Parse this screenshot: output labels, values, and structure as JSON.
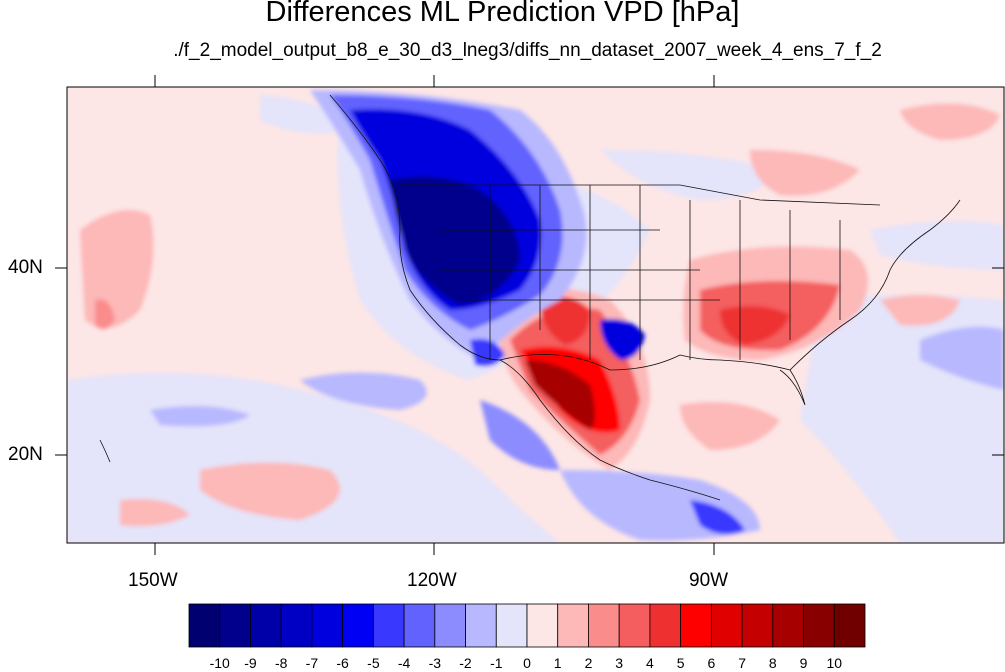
{
  "title": "Differences ML Prediction VPD [hPa]",
  "subtitle": "./f_2_model_output_b8_e_30_d3_lneg3/diffs_nn_dataset_2007_week_4_ens_7_f_2",
  "axes": {
    "lat_ticks": [
      "40N",
      "20N"
    ],
    "lon_ticks": [
      "150W",
      "120W",
      "90W"
    ]
  },
  "colorbar": {
    "labels": [
      "-10",
      "-9",
      "-8",
      "-7",
      "-6",
      "-5",
      "-4",
      "-3",
      "-2",
      "-1",
      "0",
      "1",
      "2",
      "3",
      "4",
      "5",
      "6",
      "7",
      "8",
      "9",
      "10"
    ],
    "colors": [
      "#000070",
      "#00008c",
      "#0000a8",
      "#0000c4",
      "#0000de",
      "#0000f5",
      "#3838ff",
      "#6262ff",
      "#8c8cff",
      "#b8b8ff",
      "#e4e4fa",
      "#fde6e6",
      "#fdb8b8",
      "#fa8c8c",
      "#f45e5e",
      "#ee3030",
      "#ff0000",
      "#e00000",
      "#c40000",
      "#a60000",
      "#880000",
      "#700000"
    ]
  },
  "colors": {
    "neutral_neg": "#e4e4fa",
    "neutral_pos": "#fde6e6"
  }
}
